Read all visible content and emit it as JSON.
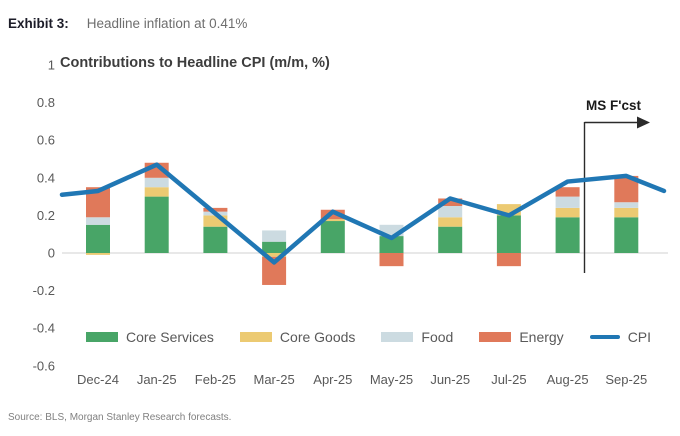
{
  "header": {
    "exhibit_label": "Exhibit 3:",
    "exhibit_title": "Headline inflation at 0.41%"
  },
  "chart_data": {
    "type": "bar",
    "subtype": "stacked-bar-with-line",
    "title": "Contributions to Headline CPI (m/m, %)",
    "categories": [
      "Dec-24",
      "Jan-25",
      "Feb-25",
      "Mar-25",
      "Apr-25",
      "May-25",
      "Jun-25",
      "Jul-25",
      "Aug-25",
      "Sep-25"
    ],
    "series": [
      {
        "name": "Core Services",
        "color": "#48a567",
        "values": [
          0.15,
          0.3,
          0.14,
          0.06,
          0.17,
          0.09,
          0.14,
          0.2,
          0.19,
          0.19
        ]
      },
      {
        "name": "Core Goods",
        "color": "#ecca72",
        "values": [
          -0.01,
          0.05,
          0.06,
          -0.02,
          0.01,
          0.0,
          0.05,
          0.06,
          0.05,
          0.05
        ]
      },
      {
        "name": "Food",
        "color": "#ccdbe1",
        "values": [
          0.04,
          0.05,
          0.02,
          0.06,
          0.0,
          0.06,
          0.06,
          0.0,
          0.06,
          0.03
        ]
      },
      {
        "name": "Energy",
        "color": "#e0795a",
        "values": [
          0.16,
          0.08,
          0.02,
          -0.15,
          0.05,
          -0.07,
          0.04,
          -0.07,
          0.05,
          0.14
        ]
      }
    ],
    "line_series": {
      "name": "CPI",
      "color": "#2077b4",
      "values": [
        0.33,
        0.47,
        0.21,
        -0.05,
        0.22,
        0.08,
        0.29,
        0.2,
        0.38,
        0.41
      ],
      "edge_left": 0.31,
      "edge_right": 0.33
    },
    "y_ticks": [
      1,
      0.8,
      0.6,
      0.4,
      0.2,
      0,
      -0.2,
      -0.4,
      -0.6
    ],
    "ylim": [
      -0.6,
      1
    ],
    "xlabel": "",
    "ylabel": "",
    "grid": false,
    "legend_position": "bottom",
    "annotation": {
      "label": "MS F'cst"
    }
  },
  "source": "Source: BLS, Morgan Stanley Research forecasts."
}
